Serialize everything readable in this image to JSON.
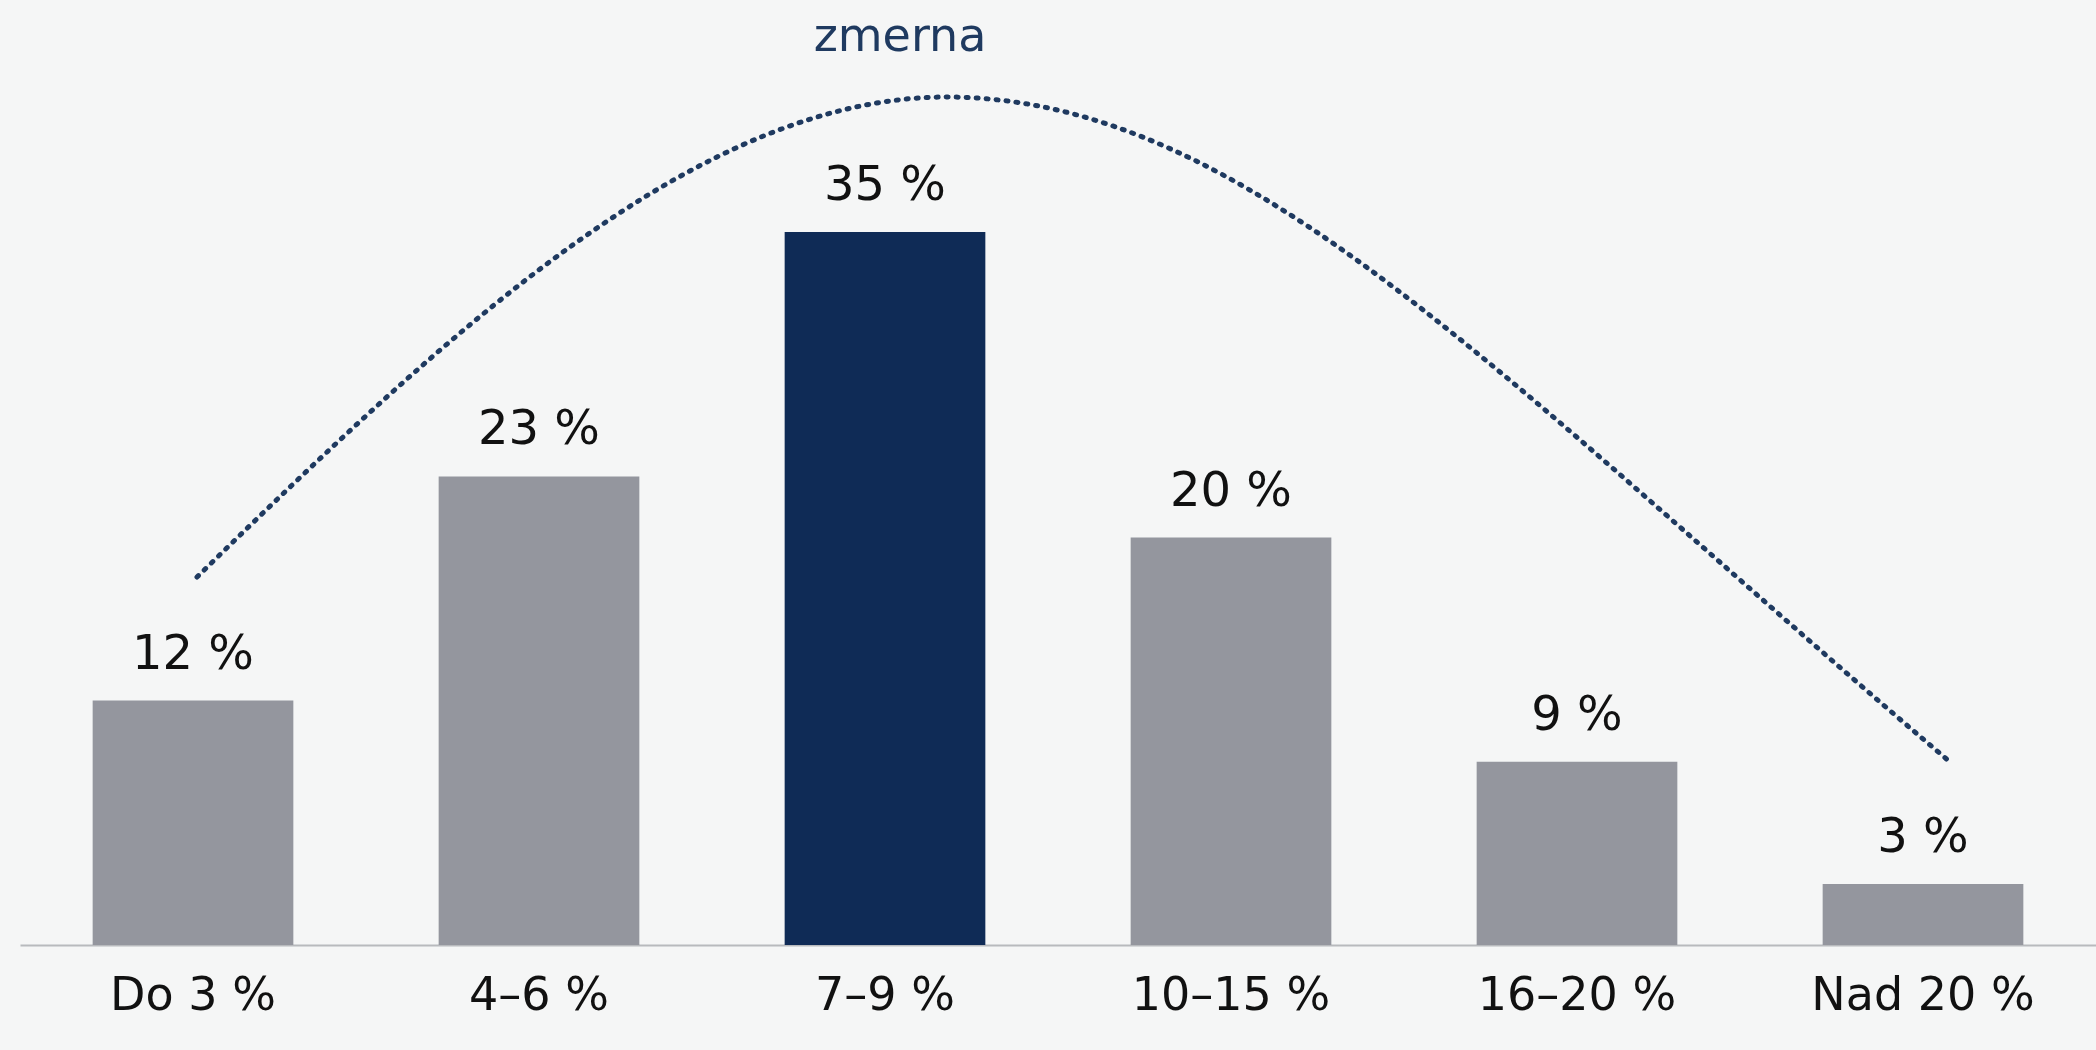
{
  "chart_data": {
    "type": "bar",
    "annotations": [
      "zmerna"
    ],
    "categories": [
      "Do 3 %",
      "4–6 %",
      "7–9 %",
      "10–15 %",
      "16–20 %",
      "Nad 20 %"
    ],
    "values": [
      12,
      23,
      35,
      20,
      9,
      3
    ],
    "colors": [
      "#94969e",
      "#94969e",
      "#0f2b56",
      "#94969e",
      "#94969e",
      "#94969e"
    ],
    "value_labels": [
      "12 %",
      "23 %",
      "35 %",
      "20 %",
      "9 %",
      "3 %"
    ]
  }
}
